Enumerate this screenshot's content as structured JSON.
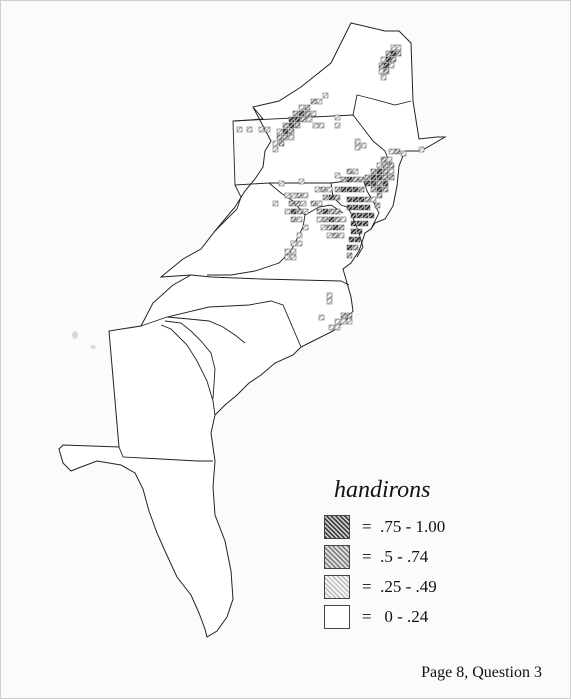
{
  "legend": {
    "title": "handirons",
    "items": [
      {
        "label": "=  .75 - 1.00",
        "value_range": [
          0.75,
          1.0
        ]
      },
      {
        "label": "=  .5 - .74",
        "value_range": [
          0.5,
          0.74
        ]
      },
      {
        "label": "=  .25 - .49",
        "value_range": [
          0.25,
          0.49
        ]
      },
      {
        "label": "=   0 - .24",
        "value_range": [
          0,
          0.24
        ]
      }
    ]
  },
  "footer": "Page 8, Question 3",
  "colors": {
    "outline": "#222222",
    "cell_edge": "#555555",
    "page": "#fbfbfa"
  }
}
